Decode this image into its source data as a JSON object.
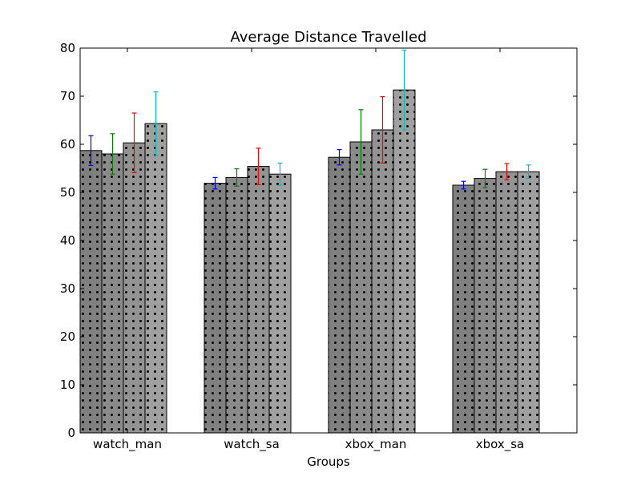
{
  "chart_data": {
    "type": "bar",
    "title": "Average Distance Travelled",
    "xlabel": "Groups",
    "ylabel": "",
    "ylim": [
      0,
      80
    ],
    "yticks": [
      "0",
      "10",
      "20",
      "30",
      "40",
      "50",
      "60",
      "70",
      "80"
    ],
    "categories": [
      "watch_man",
      "watch_sa",
      "xbox_man",
      "xbox_sa"
    ],
    "grid": false,
    "series": [
      {
        "values": [
          58.7,
          51.9,
          57.3,
          51.5
        ],
        "errors": [
          3.1,
          1.2,
          1.6,
          0.8
        ],
        "bar_color": "#808080",
        "error_color": "#0000ff"
      },
      {
        "values": [
          58.0,
          53.1,
          60.5,
          52.9
        ],
        "errors": [
          4.2,
          1.8,
          6.7,
          1.9
        ],
        "bar_color": "#8a8a8a",
        "error_color": "#008000"
      },
      {
        "values": [
          60.3,
          55.4,
          63.0,
          54.3
        ],
        "errors": [
          6.2,
          3.8,
          6.9,
          1.7
        ],
        "bar_color": "#939393",
        "error_color": "#ff0000"
      },
      {
        "values": [
          64.3,
          53.8,
          71.3,
          54.3
        ],
        "errors": [
          6.6,
          2.3,
          8.3,
          1.4
        ],
        "bar_color": "#a0a0a0",
        "error_color": "#00bfbf"
      }
    ]
  }
}
